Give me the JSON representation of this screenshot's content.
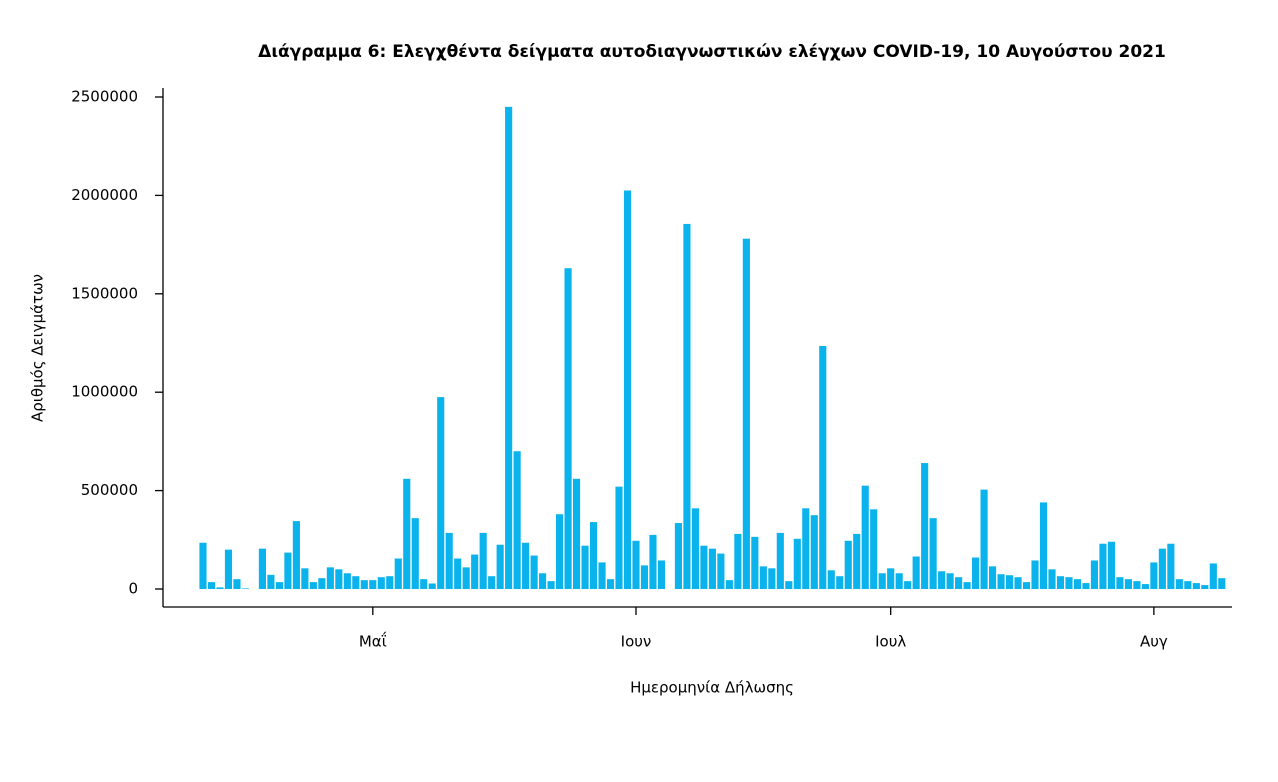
{
  "chart_data": {
    "type": "bar",
    "title": "Διάγραμμα 6: Ελεγχθέντα δείγματα αυτοδιαγνωστικών ελέγχων COVID-19, 10 Αυγούστου 2021",
    "x_label": "Ημερομηνία Δήλωσης",
    "y_label": "Αριθμός Δειγμάτων",
    "color": "#0ab3ec",
    "categories": [
      null,
      null,
      null,
      null,
      null,
      null,
      null,
      null,
      null,
      null,
      null,
      null,
      null,
      null,
      null,
      null,
      null,
      null,
      null,
      null,
      "Μαΐ",
      null,
      null,
      null,
      null,
      null,
      null,
      null,
      null,
      null,
      null,
      null,
      null,
      null,
      null,
      null,
      null,
      null,
      null,
      null,
      null,
      null,
      null,
      null,
      null,
      null,
      null,
      null,
      null,
      null,
      null,
      "Ιουν",
      null,
      null,
      null,
      null,
      null,
      null,
      null,
      null,
      null,
      null,
      null,
      null,
      null,
      null,
      null,
      null,
      null,
      null,
      null,
      null,
      null,
      null,
      null,
      null,
      null,
      null,
      null,
      null,
      null,
      "Ιουλ",
      null,
      null,
      null,
      null,
      null,
      null,
      null,
      null,
      null,
      null,
      null,
      null,
      null,
      null,
      null,
      null,
      null,
      null,
      null,
      null,
      null,
      null,
      null,
      null,
      null,
      null,
      null,
      null,
      null,
      null,
      "Αυγ",
      null,
      null,
      null,
      null,
      null,
      null,
      null,
      null
    ],
    "values": [
      235000,
      35000,
      8000,
      200000,
      50000,
      3000,
      0,
      205000,
      72000,
      35000,
      185000,
      345000,
      105000,
      35000,
      55000,
      110000,
      100000,
      80000,
      65000,
      45000,
      45000,
      60000,
      65000,
      155000,
      560000,
      360000,
      50000,
      28000,
      975000,
      285000,
      155000,
      110000,
      175000,
      285000,
      65000,
      225000,
      2450000,
      700000,
      235000,
      170000,
      80000,
      40000,
      380000,
      1630000,
      560000,
      220000,
      340000,
      135000,
      50000,
      520000,
      2025000,
      245000,
      120000,
      275000,
      145000,
      0,
      335000,
      1855000,
      410000,
      220000,
      205000,
      180000,
      45000,
      280000,
      1780000,
      265000,
      115000,
      105000,
      285000,
      40000,
      255000,
      410000,
      375000,
      1235000,
      95000,
      65000,
      245000,
      280000,
      525000,
      405000,
      80000,
      105000,
      80000,
      40000,
      165000,
      640000,
      360000,
      90000,
      80000,
      60000,
      35000,
      160000,
      505000,
      115000,
      75000,
      70000,
      60000,
      35000,
      145000,
      440000,
      100000,
      65000,
      60000,
      50000,
      30000,
      145000,
      230000,
      240000,
      60000,
      50000,
      40000,
      25000,
      135000,
      205000,
      230000,
      50000,
      40000,
      30000,
      20000,
      130000,
      55000
    ],
    "ylim": [
      0,
      2500000
    ],
    "yticks": [
      0,
      500000,
      1000000,
      1500000,
      2000000,
      2500000
    ]
  }
}
